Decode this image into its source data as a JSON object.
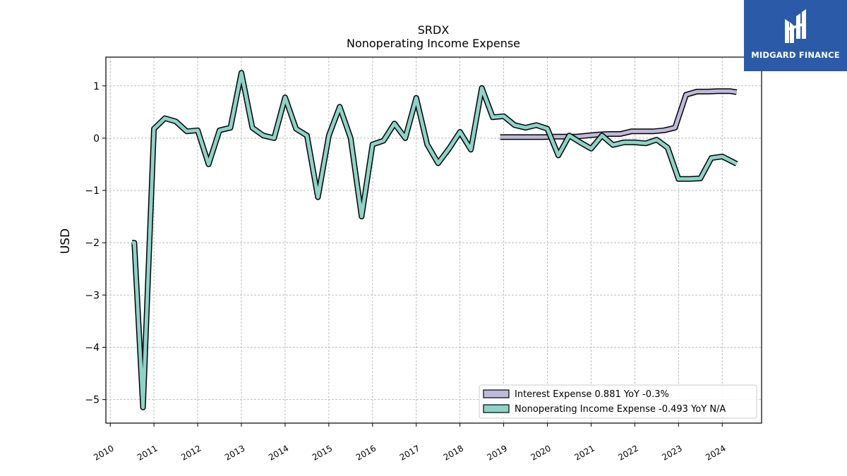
{
  "brand": {
    "name": "MIDGARD FINANCE",
    "bg_color": "#2b5aa8",
    "icon": "midgard-logo-icon"
  },
  "chart_data": {
    "type": "line",
    "title": "SRDX",
    "subtitle": "Nonoperating Income Expense",
    "ylabel": "USD",
    "xlabel": "",
    "xlim": [
      2009.9,
      2024.9
    ],
    "ylim": [
      -5.45,
      1.55
    ],
    "yticks": [
      1,
      0,
      -1,
      -2,
      -3,
      -4,
      -5
    ],
    "ytick_labels": [
      "1",
      "0",
      "−1",
      "−2",
      "−3",
      "−4",
      "−5"
    ],
    "xticks": [
      2010,
      2011,
      2012,
      2013,
      2014,
      2015,
      2016,
      2017,
      2018,
      2019,
      2020,
      2021,
      2022,
      2023,
      2024
    ],
    "xtick_labels": [
      "2010",
      "2011",
      "2012",
      "2013",
      "2014",
      "2015",
      "2016",
      "2017",
      "2018",
      "2019",
      "2020",
      "2021",
      "2022",
      "2023",
      "2024"
    ],
    "grid": true,
    "legend_position": "lower-right",
    "series": [
      {
        "name": "Interest Expense",
        "legend_label": "Interest Expense  0.881 YoY -0.3%",
        "color": "#bebada",
        "x": [
          2018.92,
          2019.17,
          2019.42,
          2019.67,
          2019.92,
          2020.17,
          2020.42,
          2020.67,
          2020.92,
          2021.17,
          2021.42,
          2021.67,
          2021.92,
          2022.17,
          2022.42,
          2022.67,
          2022.92,
          2023.17,
          2023.42,
          2023.67,
          2023.92,
          2024.17,
          2024.33
        ],
        "y": [
          0.02,
          0.02,
          0.02,
          0.02,
          0.02,
          0.03,
          0.03,
          0.03,
          0.05,
          0.07,
          0.08,
          0.08,
          0.13,
          0.13,
          0.13,
          0.15,
          0.2,
          0.83,
          0.89,
          0.89,
          0.9,
          0.9,
          0.88
        ]
      },
      {
        "name": "Nonoperating Income Expense",
        "legend_label": "Nonoperating Income Expense  -0.493 YoY N/A",
        "color": "#8dd3c7",
        "x": [
          2010.5,
          2010.55,
          2010.75,
          2011.0,
          2011.25,
          2011.5,
          2011.75,
          2012.0,
          2012.25,
          2012.5,
          2012.75,
          2013.0,
          2013.25,
          2013.5,
          2013.75,
          2014.0,
          2014.25,
          2014.5,
          2014.75,
          2015.0,
          2015.25,
          2015.5,
          2015.75,
          2016.0,
          2016.25,
          2016.5,
          2016.75,
          2017.0,
          2017.25,
          2017.5,
          2017.75,
          2018.0,
          2018.25,
          2018.5,
          2018.75,
          2019.0,
          2019.25,
          2019.5,
          2019.75,
          2020.0,
          2020.25,
          2020.5,
          2020.75,
          2021.0,
          2021.25,
          2021.5,
          2021.75,
          2022.0,
          2022.25,
          2022.5,
          2022.75,
          2023.0,
          2023.25,
          2023.5,
          2023.75,
          2024.0,
          2024.33
        ],
        "y": [
          -2.0,
          -2.0,
          -5.15,
          0.18,
          0.38,
          0.32,
          0.13,
          0.15,
          -0.5,
          0.15,
          0.2,
          1.25,
          0.2,
          0.05,
          0.0,
          0.78,
          0.18,
          0.05,
          -1.13,
          0.05,
          0.6,
          0.0,
          -1.5,
          -0.12,
          -0.05,
          0.28,
          0.0,
          0.77,
          -0.12,
          -0.48,
          -0.2,
          0.12,
          -0.22,
          0.96,
          0.4,
          0.42,
          0.25,
          0.2,
          0.25,
          0.18,
          -0.33,
          0.05,
          -0.08,
          -0.2,
          0.05,
          -0.13,
          -0.08,
          -0.08,
          -0.1,
          -0.03,
          -0.18,
          -0.78,
          -0.78,
          -0.77,
          -0.38,
          -0.35,
          -0.49
        ]
      }
    ]
  }
}
